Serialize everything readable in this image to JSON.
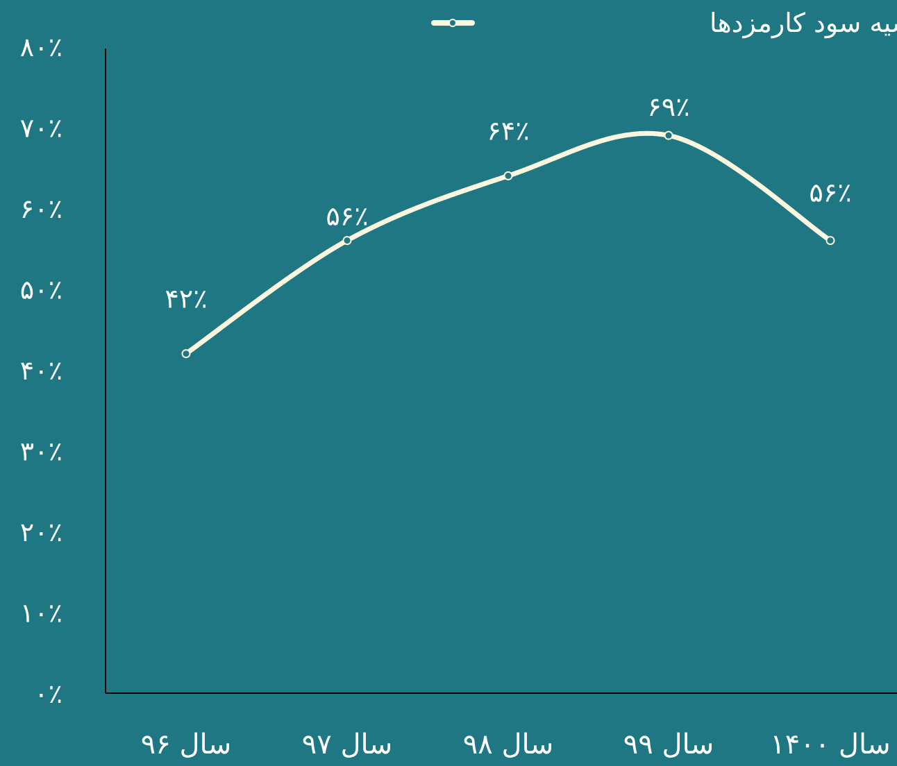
{
  "chart_data": {
    "type": "line",
    "categories": [
      "سال ۹۶",
      "سال ۹۷",
      "سال ۹۸",
      "سال ۹۹",
      "سال ۱۴۰۰"
    ],
    "series": [
      {
        "name": "حاشیه سود کارمزدها",
        "values": [
          42,
          56,
          64,
          69,
          56
        ],
        "data_labels": [
          "۴۲٪",
          "۵۶٪",
          "۶۴٪",
          "۶۹٪",
          "۵۶٪"
        ]
      }
    ],
    "y_ticks": [
      0,
      10,
      20,
      30,
      40,
      50,
      60,
      70,
      80
    ],
    "y_tick_labels": [
      "۰٪",
      "۱۰٪",
      "۲۰٪",
      "۳۰٪",
      "۴۰٪",
      "۵۰٪",
      "۶۰٪",
      "۷۰٪",
      "۸۰٪"
    ],
    "ylim": [
      0,
      80
    ],
    "grid": false,
    "smooth": true,
    "legend_position": "top",
    "colors": {
      "background": "#1f7783",
      "line": "#fbf7de",
      "text": "#ffffff",
      "axis": "#000000"
    }
  }
}
